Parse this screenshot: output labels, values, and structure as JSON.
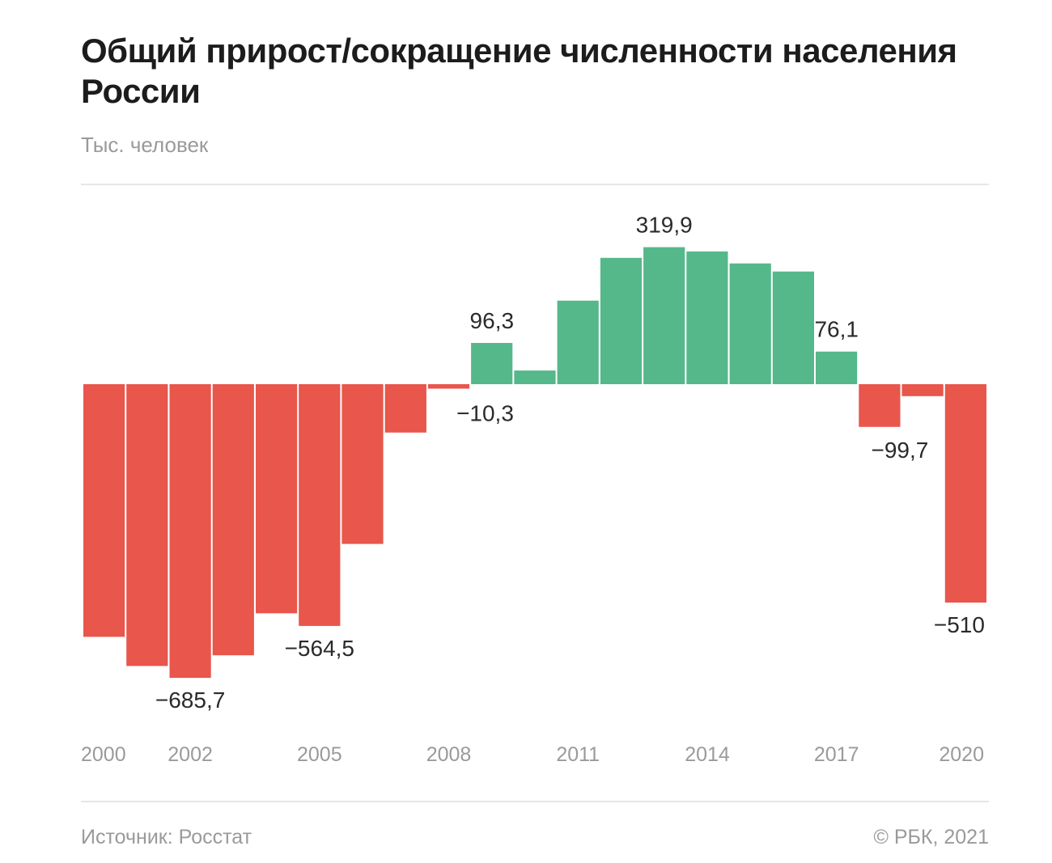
{
  "header": {
    "title": "Общий прирост/сокращение численности населения России",
    "subtitle": "Тыс. человек"
  },
  "footer": {
    "source": "Источник: Росстат",
    "copyright": "© РБК, 2021"
  },
  "colors": {
    "positive": "#55b88a",
    "negative": "#e8564c",
    "label_text": "#2a2a2a",
    "tick_text": "#9a9a9a"
  },
  "chart_data": {
    "type": "bar",
    "title": "Общий прирост/сокращение численности населения России",
    "subtitle": "Тыс. человек",
    "xlabel": "",
    "ylabel": "Тыс. человек",
    "categories": [
      "2000",
      "2001",
      "2002",
      "2003",
      "2004",
      "2005",
      "2006",
      "2007",
      "2008",
      "2009",
      "2010",
      "2011",
      "2012",
      "2013",
      "2014",
      "2015",
      "2016",
      "2017",
      "2018",
      "2019",
      "2020"
    ],
    "values": [
      -590,
      -658,
      -685.7,
      -633,
      -535,
      -564.5,
      -373,
      -113,
      -10.3,
      96.3,
      32,
      195,
      295,
      319.9,
      310,
      282,
      263,
      76.1,
      -99.7,
      -28,
      -510
    ],
    "ylim": [
      -800,
      400
    ],
    "grid": false,
    "legend": "none",
    "tick_labels": [
      "2000",
      "2002",
      "2005",
      "2008",
      "2011",
      "2014",
      "2017",
      "2020"
    ],
    "tick_years": [
      2000,
      2002,
      2005,
      2008,
      2011,
      2014,
      2017,
      2020
    ],
    "data_labels": [
      {
        "year": "2002",
        "text": "−685,7"
      },
      {
        "year": "2005",
        "text": "−564,5"
      },
      {
        "year": "2008",
        "text": "−10,3"
      },
      {
        "year": "2009",
        "text": "96,3"
      },
      {
        "year": "2013",
        "text": "319,9"
      },
      {
        "year": "2017",
        "text": "76,1"
      },
      {
        "year": "2018",
        "text": "−99,7"
      },
      {
        "year": "2020",
        "text": "−510"
      }
    ]
  }
}
